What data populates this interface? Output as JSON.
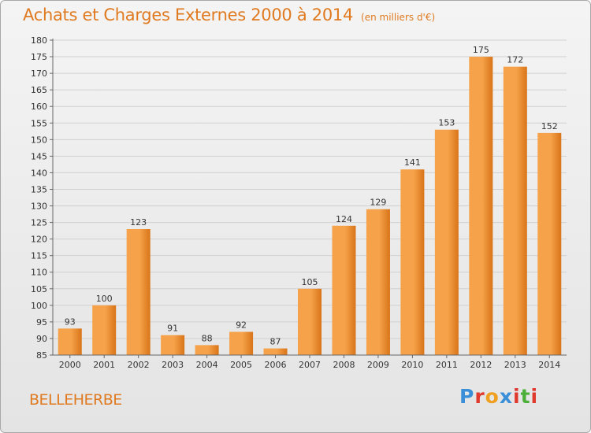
{
  "title": "Achats et Charges Externes 2000 à 2014",
  "unit_note": "(en milliers d'€)",
  "commune": "BELLEHERBE",
  "brand": {
    "letters": [
      {
        "char": "P",
        "color": "#3a8fd8"
      },
      {
        "char": "r",
        "color": "#e03a2e"
      },
      {
        "char": "o",
        "color": "#f0a020"
      },
      {
        "char": "x",
        "color": "#3a8fd8"
      },
      {
        "char": "i",
        "color": "#e03a2e"
      },
      {
        "char": "t",
        "color": "#4caf3a"
      },
      {
        "char": "i",
        "color": "#e03a2e"
      }
    ]
  },
  "colors": {
    "bar_light": "#f5a24a",
    "bar_dark": "#d97418",
    "axis": "#666666",
    "grid": "#d0d0d0",
    "text": "#333333"
  },
  "chart_data": {
    "type": "bar",
    "categories": [
      "2000",
      "2001",
      "2002",
      "2003",
      "2004",
      "2005",
      "2006",
      "2007",
      "2008",
      "2009",
      "2010",
      "2011",
      "2012",
      "2013",
      "2014"
    ],
    "values": [
      93,
      100,
      123,
      91,
      88,
      92,
      87,
      105,
      124,
      129,
      141,
      153,
      175,
      172,
      152
    ],
    "ylim": [
      85,
      180
    ],
    "yticks": [
      85,
      90,
      95,
      100,
      105,
      110,
      115,
      120,
      125,
      130,
      135,
      140,
      145,
      150,
      155,
      160,
      165,
      170,
      175,
      180
    ],
    "grid": "horizontal"
  }
}
